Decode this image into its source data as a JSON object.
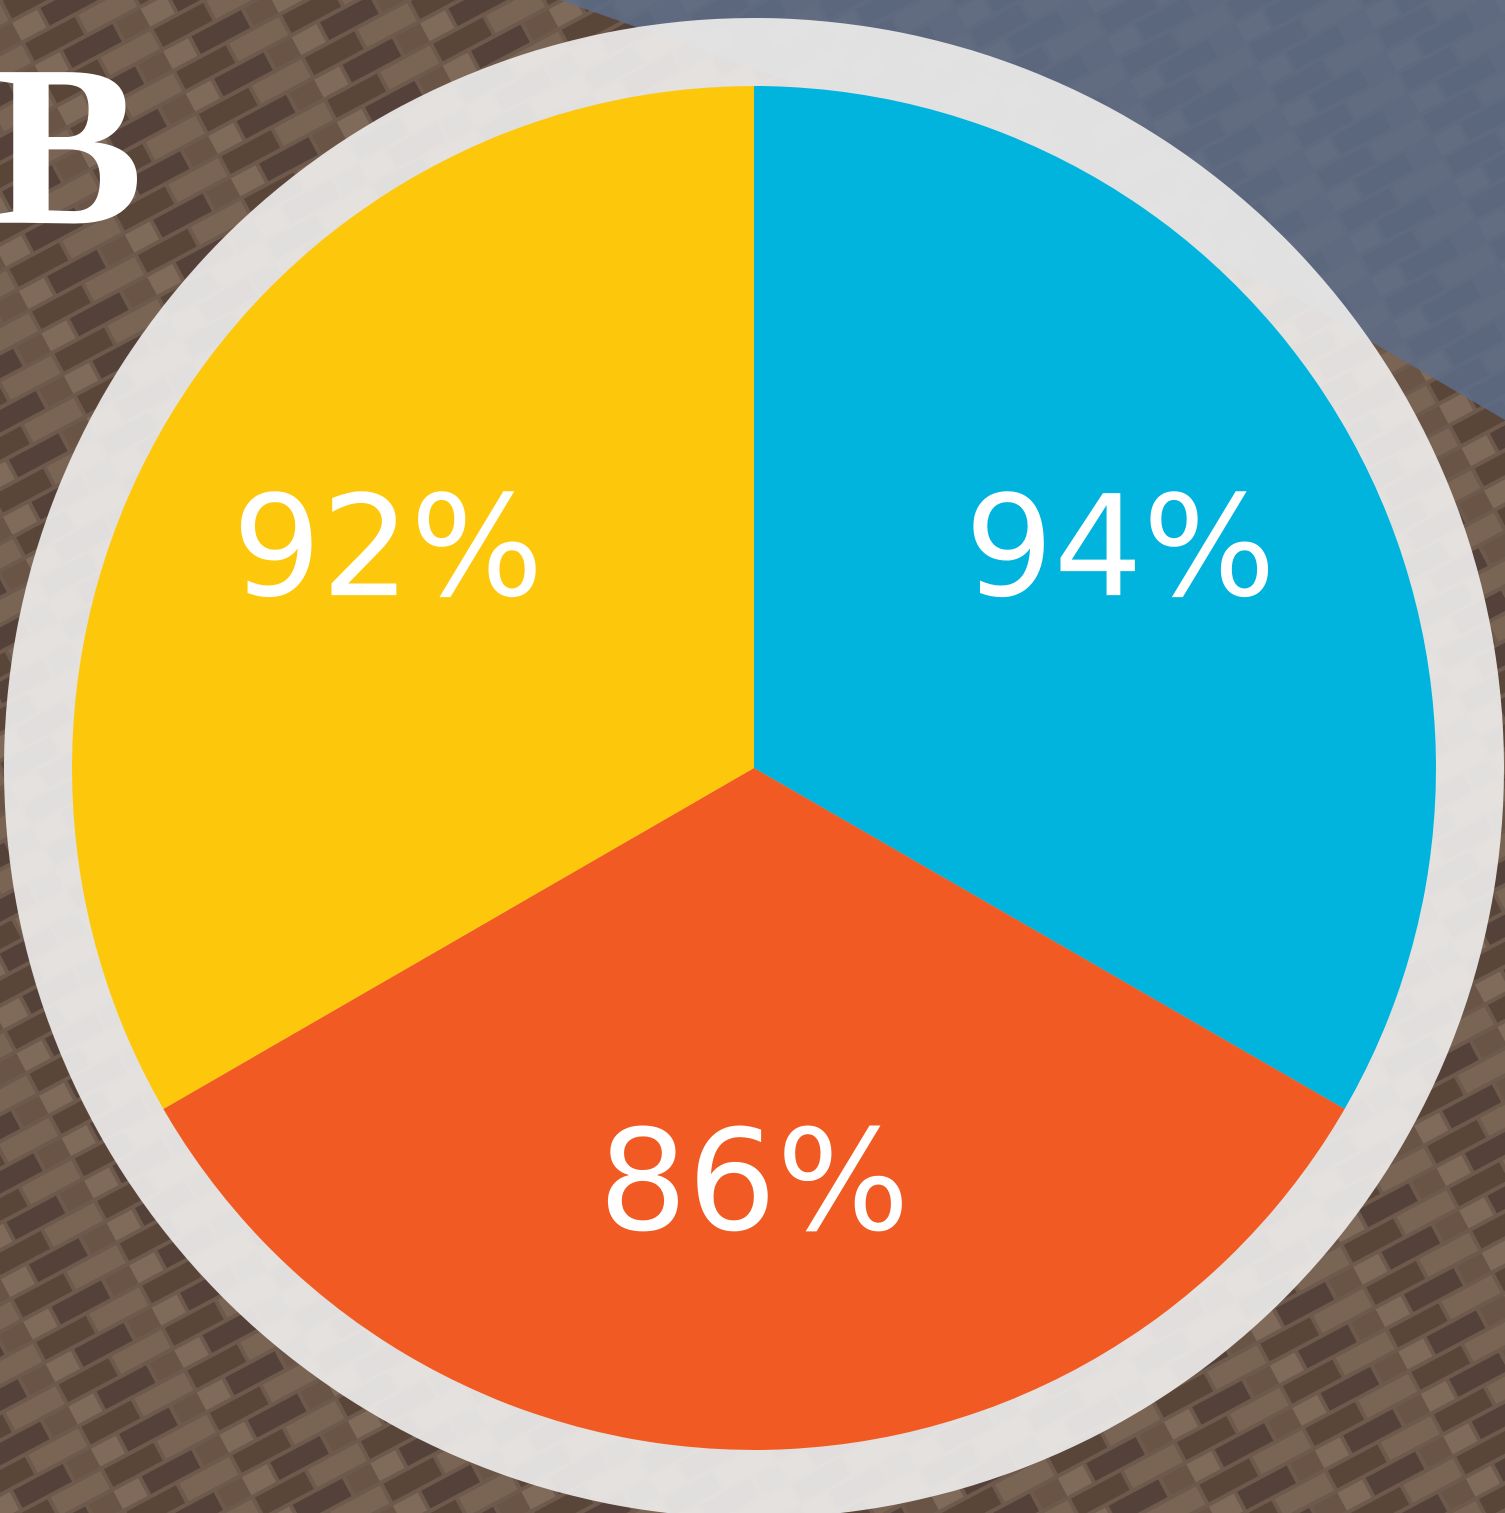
{
  "letter": "B",
  "segments": [
    {
      "label": "94%",
      "color": "#00b4de"
    },
    {
      "label": "86%",
      "color": "#f15a22"
    },
    {
      "label": "92%",
      "color": "#fdc80c"
    }
  ]
}
